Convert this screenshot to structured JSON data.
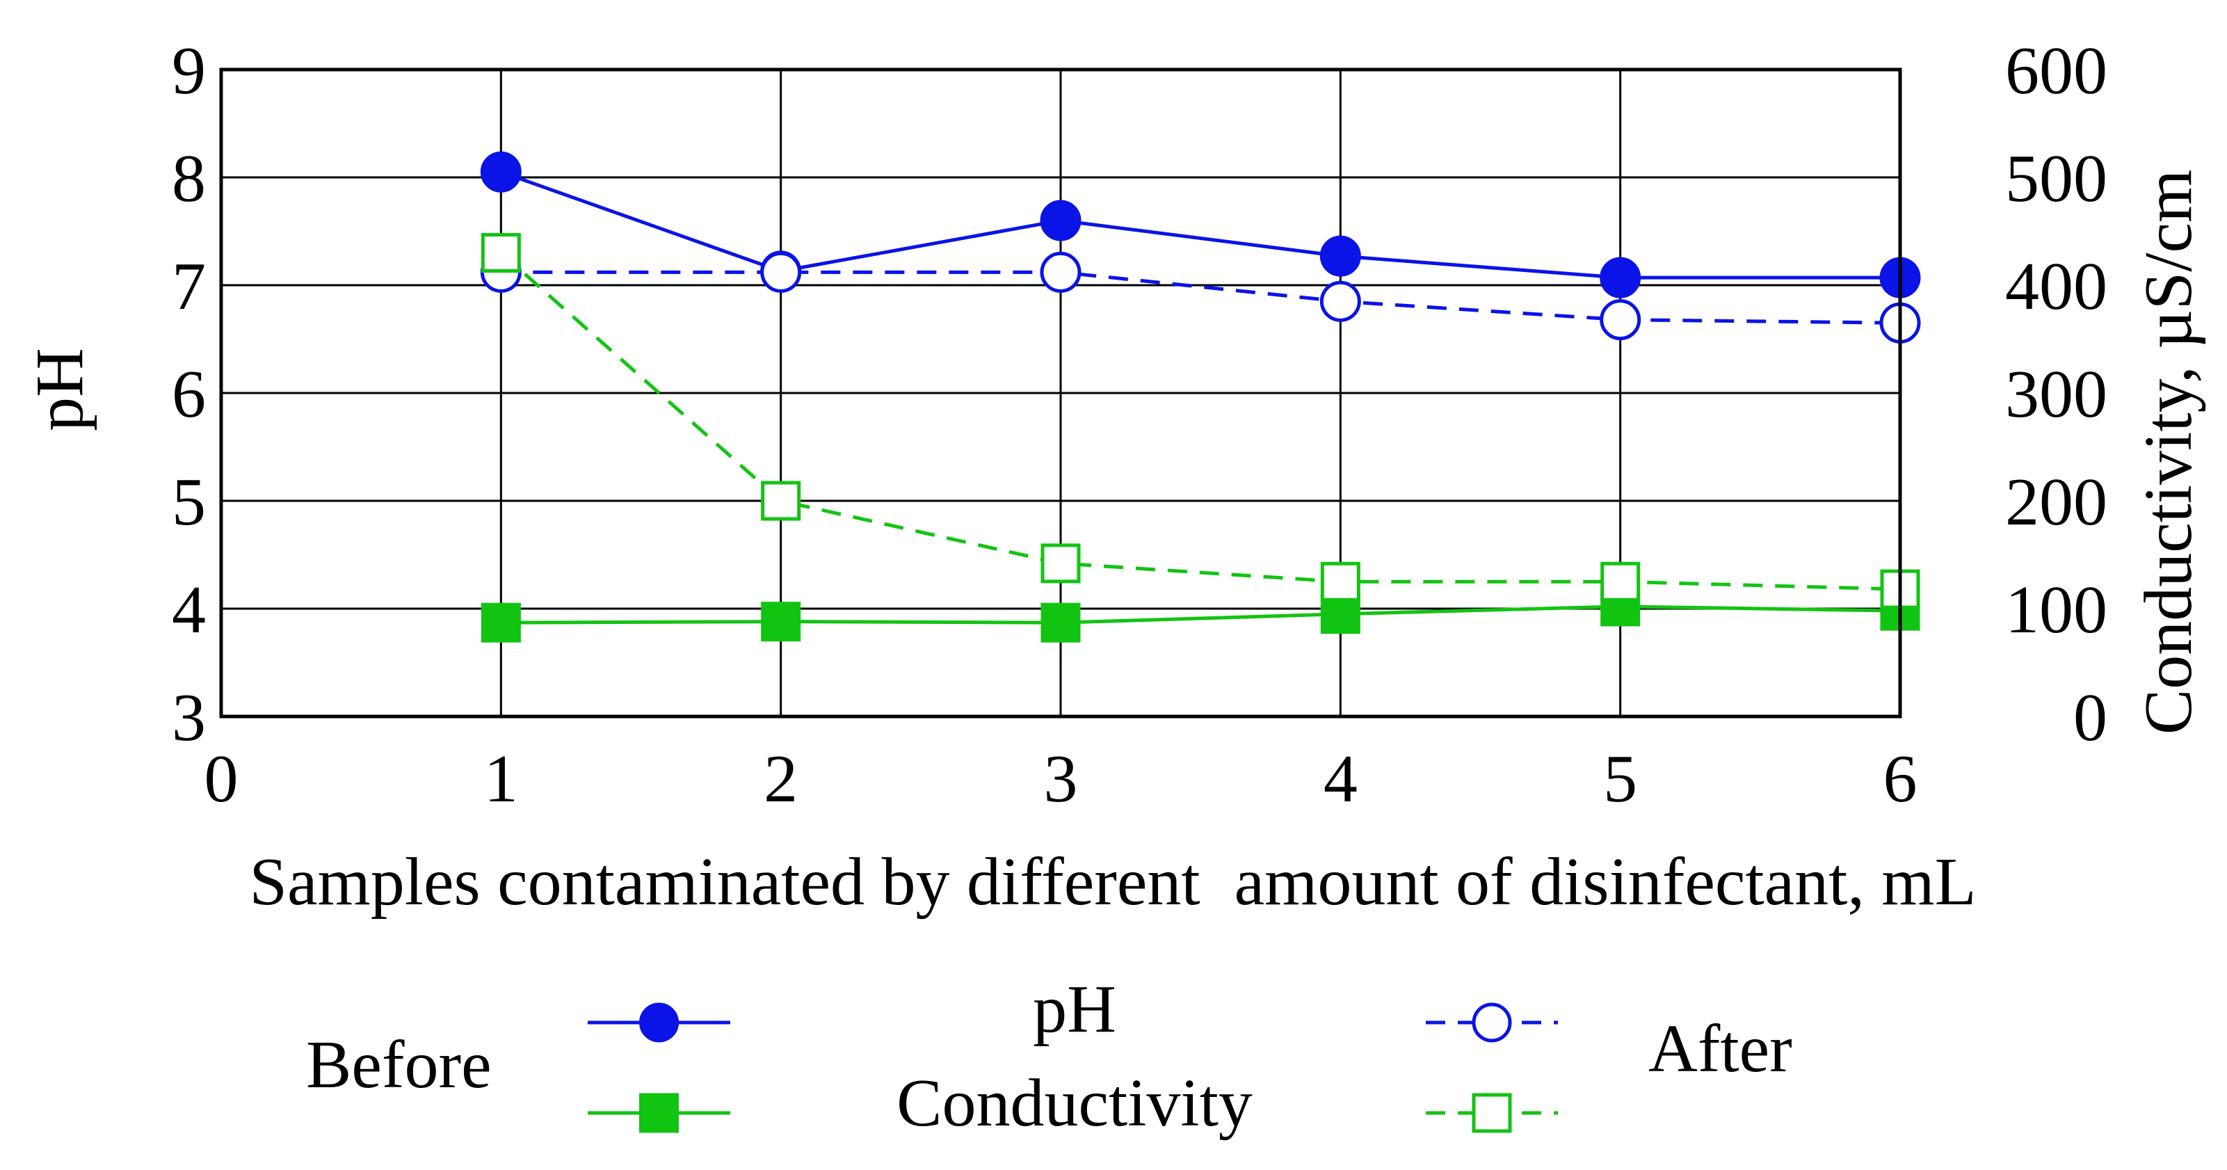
{
  "chart_data": {
    "type": "line",
    "x": [
      1,
      2,
      3,
      4,
      5,
      6
    ],
    "x_ticks": [
      "0",
      "1",
      "2",
      "3",
      "4",
      "5",
      "6"
    ],
    "xlim": [
      0,
      6
    ],
    "xlabel": "Samples contaminated by different  amount of disinfectant, mL",
    "ylabel_left": "pH",
    "ylim_left": [
      3,
      9
    ],
    "y_ticks_left": [
      "3",
      "4",
      "5",
      "6",
      "7",
      "8",
      "9"
    ],
    "ylabel_right": "Conductivity, µS/cm",
    "ylim_right": [
      0,
      600
    ],
    "y_ticks_right": [
      "0",
      "100",
      "200",
      "300",
      "400",
      "500",
      "600"
    ],
    "grid": true,
    "series": [
      {
        "name": "pH Before",
        "axis": "left",
        "values": [
          8.05,
          7.13,
          7.6,
          7.27,
          7.07,
          7.07
        ],
        "color": "#0a14e6",
        "dash": false,
        "marker": "circle",
        "filled": true
      },
      {
        "name": "pH After",
        "axis": "left",
        "values": [
          7.12,
          7.12,
          7.12,
          6.85,
          6.68,
          6.65
        ],
        "color": "#0a14e6",
        "dash": true,
        "marker": "circle",
        "filled": false
      },
      {
        "name": "Conductivity Before",
        "axis": "right",
        "values": [
          87,
          88,
          87,
          95,
          102,
          98
        ],
        "color": "#12c412",
        "dash": false,
        "marker": "square",
        "filled": true
      },
      {
        "name": "Conductivity After",
        "axis": "right",
        "values": [
          430,
          200,
          142,
          125,
          125,
          118
        ],
        "color": "#12c412",
        "dash": true,
        "marker": "square",
        "filled": false
      }
    ],
    "legend": {
      "placement": "bottom",
      "before_label": "Before",
      "after_label": "After",
      "ph_label": "pH",
      "conductivity_label": "Conductivity"
    }
  }
}
